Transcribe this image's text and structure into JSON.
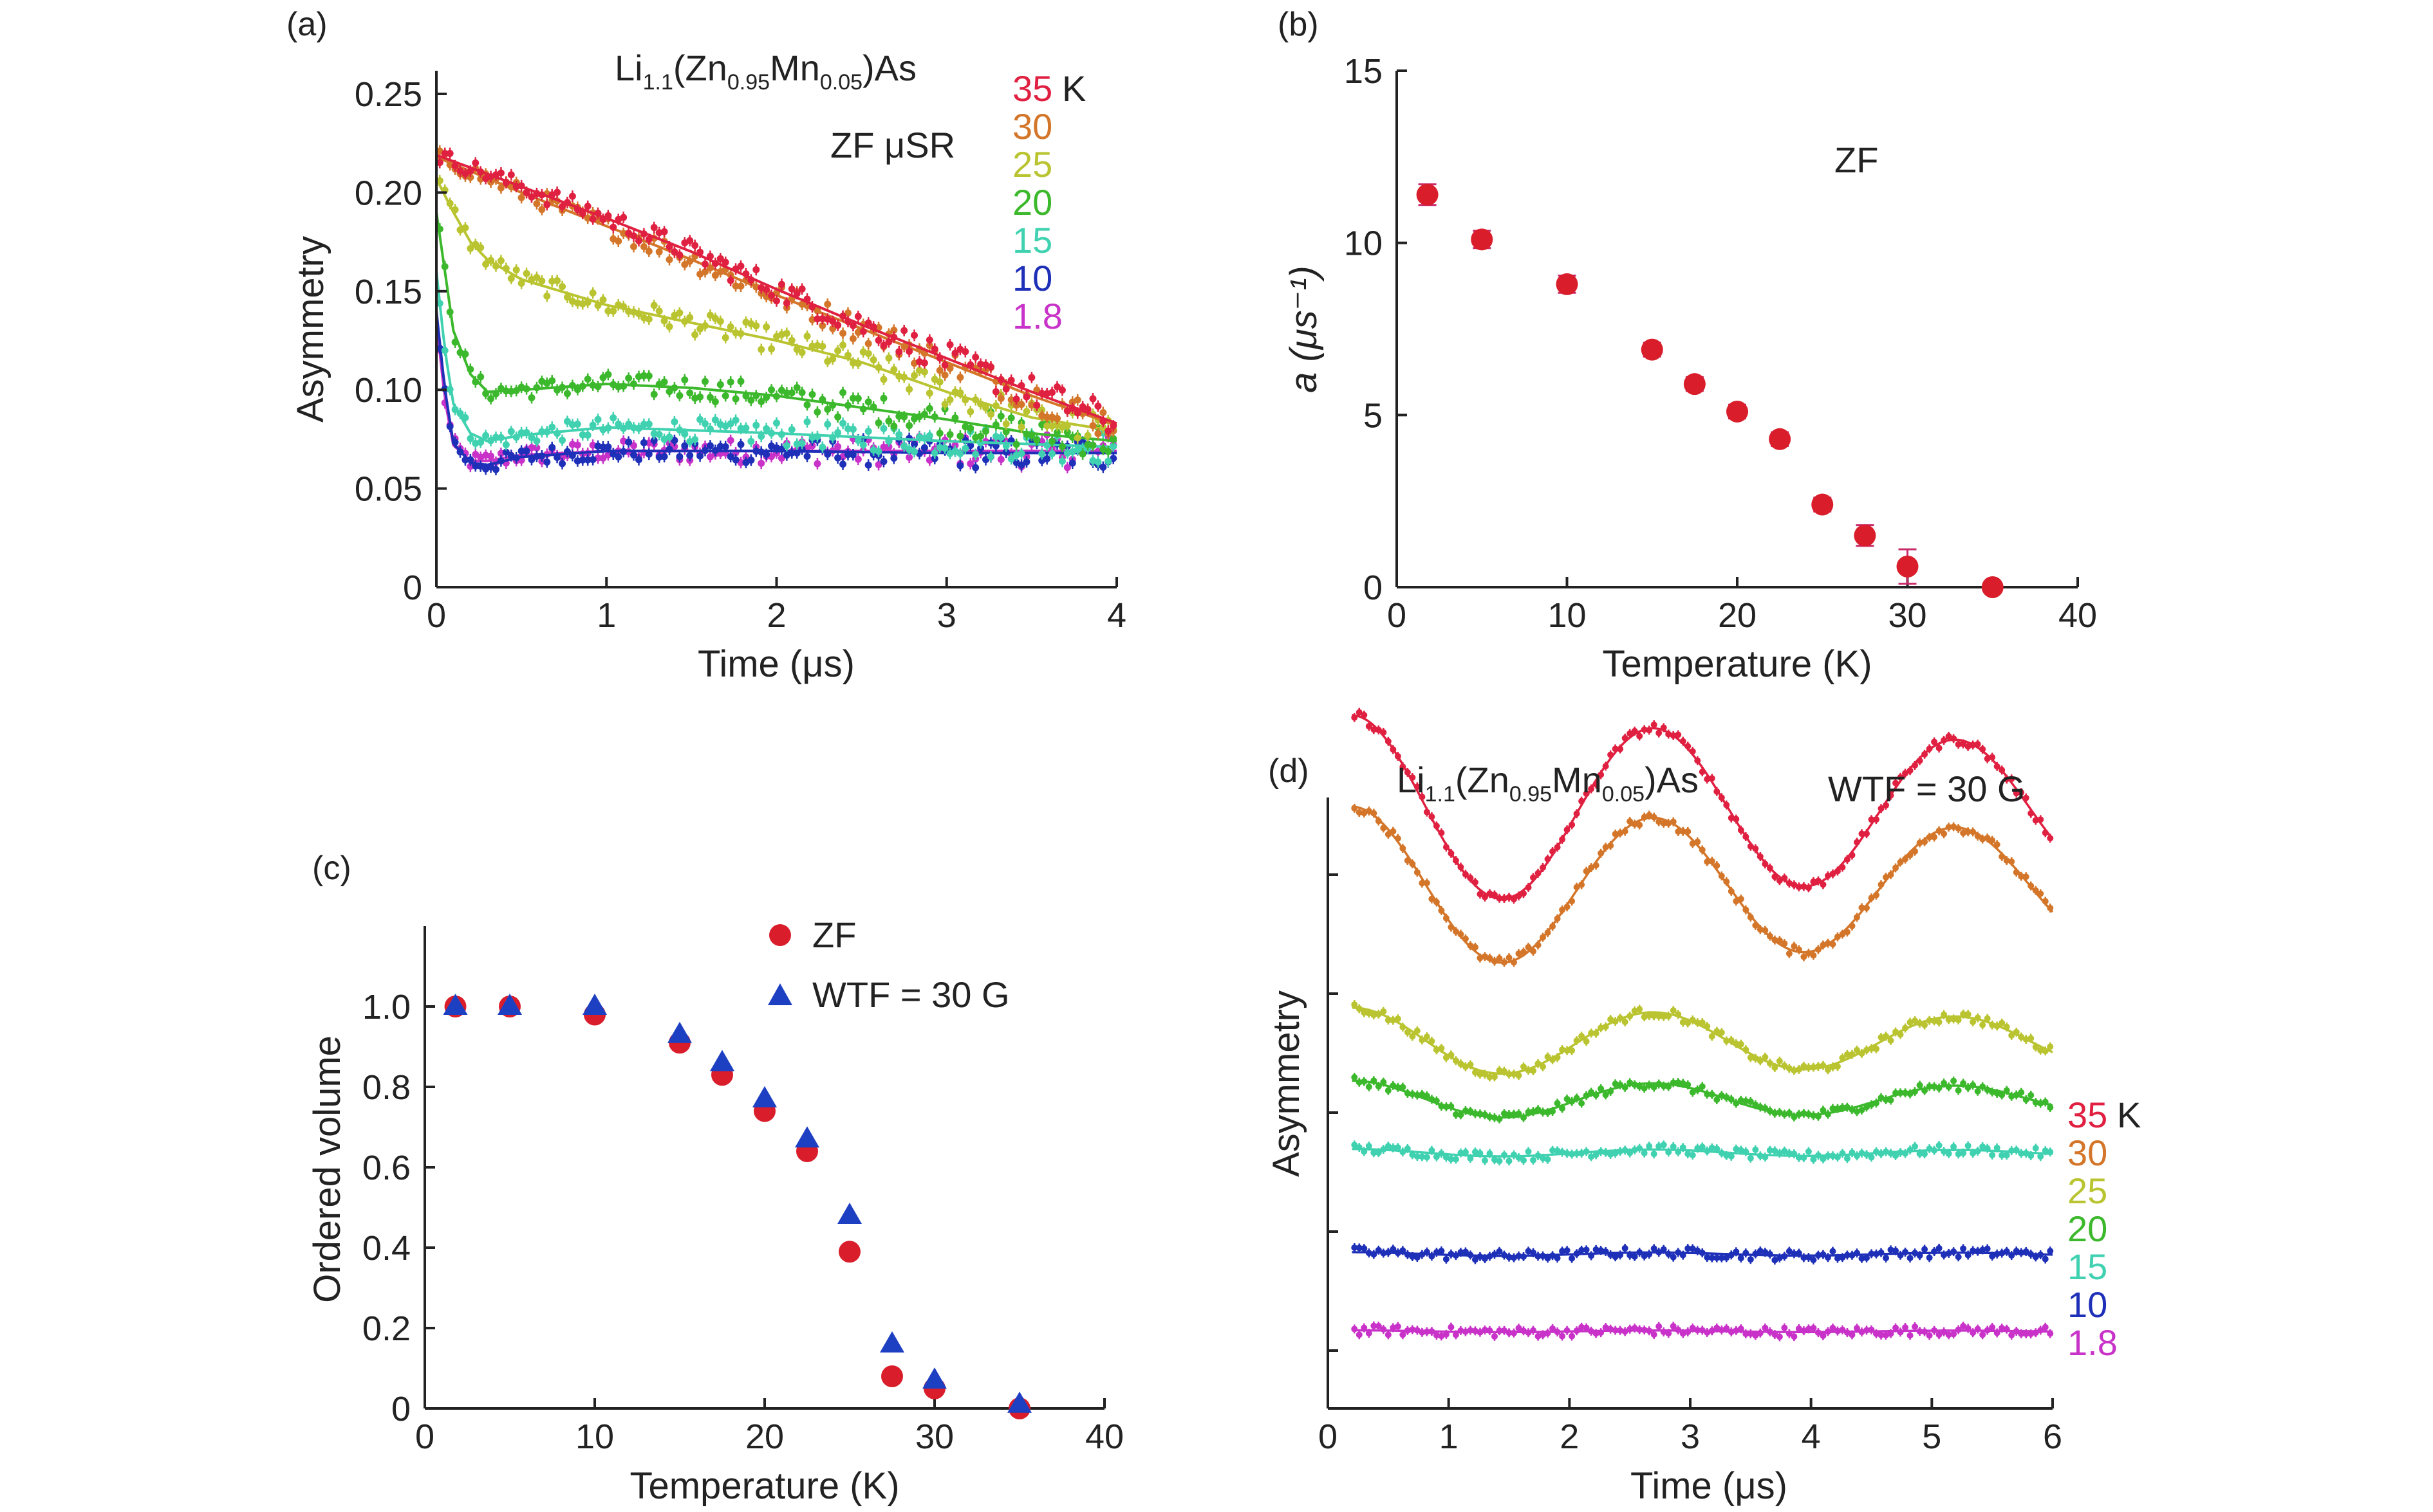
{
  "colors": {
    "35": "#e02040",
    "30": "#d4762a",
    "25": "#b9c430",
    "20": "#3cb82c",
    "15": "#3fd1b0",
    "10": "#1e2fb8",
    "1.8": "#c832c8",
    "zf_marker": "#d91d2b",
    "wtf_marker": "#1d3fc2",
    "axis": "#222222"
  },
  "chart_data": [
    {
      "id": "a",
      "panel_label": "(a)",
      "type": "scatter",
      "title": "Li1.1(Zn0.95Mn0.05)As",
      "annotation": "ZF μSR",
      "xlabel": "Time (μs)",
      "ylabel": "Asymmetry",
      "xlim": [
        0,
        4
      ],
      "ylim": [
        0,
        0.25
      ],
      "xticks": [
        0,
        1,
        2,
        3,
        4
      ],
      "yticks": [
        0,
        0.05,
        0.1,
        0.15,
        0.2,
        0.25
      ],
      "ytick_labels": [
        "0",
        "0.05",
        "0.10",
        "0.15",
        "0.20",
        "0.25"
      ],
      "legend_unit": "K",
      "series": [
        {
          "name": "35",
          "fit": [
            [
              0,
              0.219
            ],
            [
              0.5,
              0.203
            ],
            [
              1,
              0.187
            ],
            [
              1.5,
              0.17
            ],
            [
              2,
              0.151
            ],
            [
              2.5,
              0.133
            ],
            [
              3,
              0.116
            ],
            [
              3.5,
              0.099
            ],
            [
              4,
              0.083
            ]
          ]
        },
        {
          "name": "30",
          "fit": [
            [
              0,
              0.218
            ],
            [
              0.5,
              0.2
            ],
            [
              1,
              0.183
            ],
            [
              1.5,
              0.166
            ],
            [
              2,
              0.148
            ],
            [
              2.5,
              0.131
            ],
            [
              3,
              0.114
            ],
            [
              3.5,
              0.097
            ],
            [
              4,
              0.082
            ]
          ]
        },
        {
          "name": "25",
          "fit": [
            [
              0,
              0.207
            ],
            [
              0.1,
              0.19
            ],
            [
              0.2,
              0.175
            ],
            [
              0.3,
              0.166
            ],
            [
              0.5,
              0.156
            ],
            [
              1,
              0.143
            ],
            [
              1.5,
              0.134
            ],
            [
              2,
              0.125
            ],
            [
              2.5,
              0.114
            ],
            [
              3,
              0.099
            ],
            [
              3.5,
              0.086
            ],
            [
              4,
              0.079
            ]
          ]
        },
        {
          "name": "20",
          "fit": [
            [
              0,
              0.19
            ],
            [
              0.05,
              0.16
            ],
            [
              0.1,
              0.13
            ],
            [
              0.2,
              0.108
            ],
            [
              0.3,
              0.099
            ],
            [
              0.5,
              0.1
            ],
            [
              1,
              0.103
            ],
            [
              1.5,
              0.101
            ],
            [
              2,
              0.097
            ],
            [
              2.5,
              0.091
            ],
            [
              3,
              0.085
            ],
            [
              3.5,
              0.078
            ],
            [
              4,
              0.074
            ]
          ]
        },
        {
          "name": "15",
          "fit": [
            [
              0,
              0.16
            ],
            [
              0.05,
              0.12
            ],
            [
              0.1,
              0.093
            ],
            [
              0.2,
              0.078
            ],
            [
              0.3,
              0.074
            ],
            [
              0.5,
              0.077
            ],
            [
              1,
              0.081
            ],
            [
              2,
              0.078
            ],
            [
              3,
              0.074
            ],
            [
              4,
              0.071
            ]
          ]
        },
        {
          "name": "10",
          "fit": [
            [
              0,
              0.14
            ],
            [
              0.05,
              0.1
            ],
            [
              0.1,
              0.073
            ],
            [
              0.2,
              0.063
            ],
            [
              0.3,
              0.062
            ],
            [
              0.5,
              0.066
            ],
            [
              1,
              0.069
            ],
            [
              2,
              0.069
            ],
            [
              3,
              0.068
            ],
            [
              4,
              0.068
            ]
          ]
        },
        {
          "name": "1.8",
          "fit": [
            [
              0,
              0.135
            ],
            [
              0.05,
              0.095
            ],
            [
              0.1,
              0.072
            ],
            [
              0.2,
              0.064
            ],
            [
              0.3,
              0.064
            ],
            [
              0.5,
              0.067
            ],
            [
              1,
              0.069
            ],
            [
              2,
              0.069
            ],
            [
              3,
              0.069
            ],
            [
              4,
              0.069
            ]
          ]
        }
      ]
    },
    {
      "id": "b",
      "panel_label": "(b)",
      "type": "scatter",
      "annotation": "ZF",
      "xlabel": "Temperature (K)",
      "ylabel": "a (μs⁻¹)",
      "xlim": [
        0,
        40
      ],
      "ylim": [
        0,
        15
      ],
      "xticks": [
        0,
        10,
        20,
        30,
        40
      ],
      "yticks": [
        0,
        5,
        10,
        15
      ],
      "points": [
        {
          "x": 1.8,
          "y": 11.4,
          "err": 0.3
        },
        {
          "x": 5,
          "y": 10.1,
          "err": 0.25
        },
        {
          "x": 10,
          "y": 8.8,
          "err": 0.25
        },
        {
          "x": 15,
          "y": 6.9,
          "err": 0.2
        },
        {
          "x": 17.5,
          "y": 5.9,
          "err": 0.2
        },
        {
          "x": 20,
          "y": 5.1,
          "err": 0.2
        },
        {
          "x": 22.5,
          "y": 4.3,
          "err": 0.2
        },
        {
          "x": 25,
          "y": 2.4,
          "err": 0.2
        },
        {
          "x": 27.5,
          "y": 1.5,
          "err": 0.3
        },
        {
          "x": 30,
          "y": 0.6,
          "err": 0.5
        },
        {
          "x": 35,
          "y": 0.0,
          "err": 0.1
        }
      ]
    },
    {
      "id": "c",
      "panel_label": "(c)",
      "type": "scatter",
      "xlabel": "Temperature (K)",
      "ylabel": "Ordered volume",
      "xlim": [
        0,
        40
      ],
      "ylim": [
        0,
        1.2
      ],
      "xticks": [
        0,
        10,
        20,
        30,
        40
      ],
      "yticks": [
        0,
        0.2,
        0.4,
        0.6,
        0.8,
        1.0
      ],
      "ytick_labels": [
        "0",
        "0.2",
        "0.4",
        "0.6",
        "0.8",
        "1.0"
      ],
      "series": [
        {
          "name": "ZF",
          "marker": "circle",
          "x": [
            1.8,
            5,
            10,
            15,
            17.5,
            20,
            22.5,
            25,
            27.5,
            30,
            35
          ],
          "y": [
            1.0,
            1.0,
            0.98,
            0.91,
            0.83,
            0.74,
            0.64,
            0.39,
            0.08,
            0.05,
            0.0
          ]
        },
        {
          "name": "WTF = 30 G",
          "marker": "triangle",
          "x": [
            1.8,
            5,
            10,
            15,
            17.5,
            20,
            22.5,
            25,
            27.5,
            30,
            35
          ],
          "y": [
            1.0,
            1.0,
            1.0,
            0.93,
            0.86,
            0.77,
            0.67,
            0.48,
            0.16,
            0.07,
            0.01
          ]
        }
      ]
    },
    {
      "id": "d",
      "panel_label": "(d)",
      "type": "line",
      "title": "Li1.1(Zn0.95Mn0.05)As",
      "annotation": "WTF = 30 G",
      "xlabel": "Time (μs)",
      "ylabel": "Asymmetry",
      "xlim": [
        0,
        6
      ],
      "xticks": [
        0,
        1,
        2,
        3,
        4,
        5,
        6
      ],
      "legend_unit": "K",
      "series": [
        {
          "name": "35",
          "offset": 5.6,
          "amplitude": 1.0
        },
        {
          "name": "30",
          "offset": 4.8,
          "amplitude": 0.85
        },
        {
          "name": "25",
          "offset": 3.2,
          "amplitude": 0.36
        },
        {
          "name": "20",
          "offset": 2.6,
          "amplitude": 0.2
        },
        {
          "name": "15",
          "offset": 2.05,
          "amplitude": 0.04
        },
        {
          "name": "10",
          "offset": 1.0,
          "amplitude": 0.02
        },
        {
          "name": "1.8",
          "offset": 0.2,
          "amplitude": 0.01
        }
      ]
    }
  ]
}
